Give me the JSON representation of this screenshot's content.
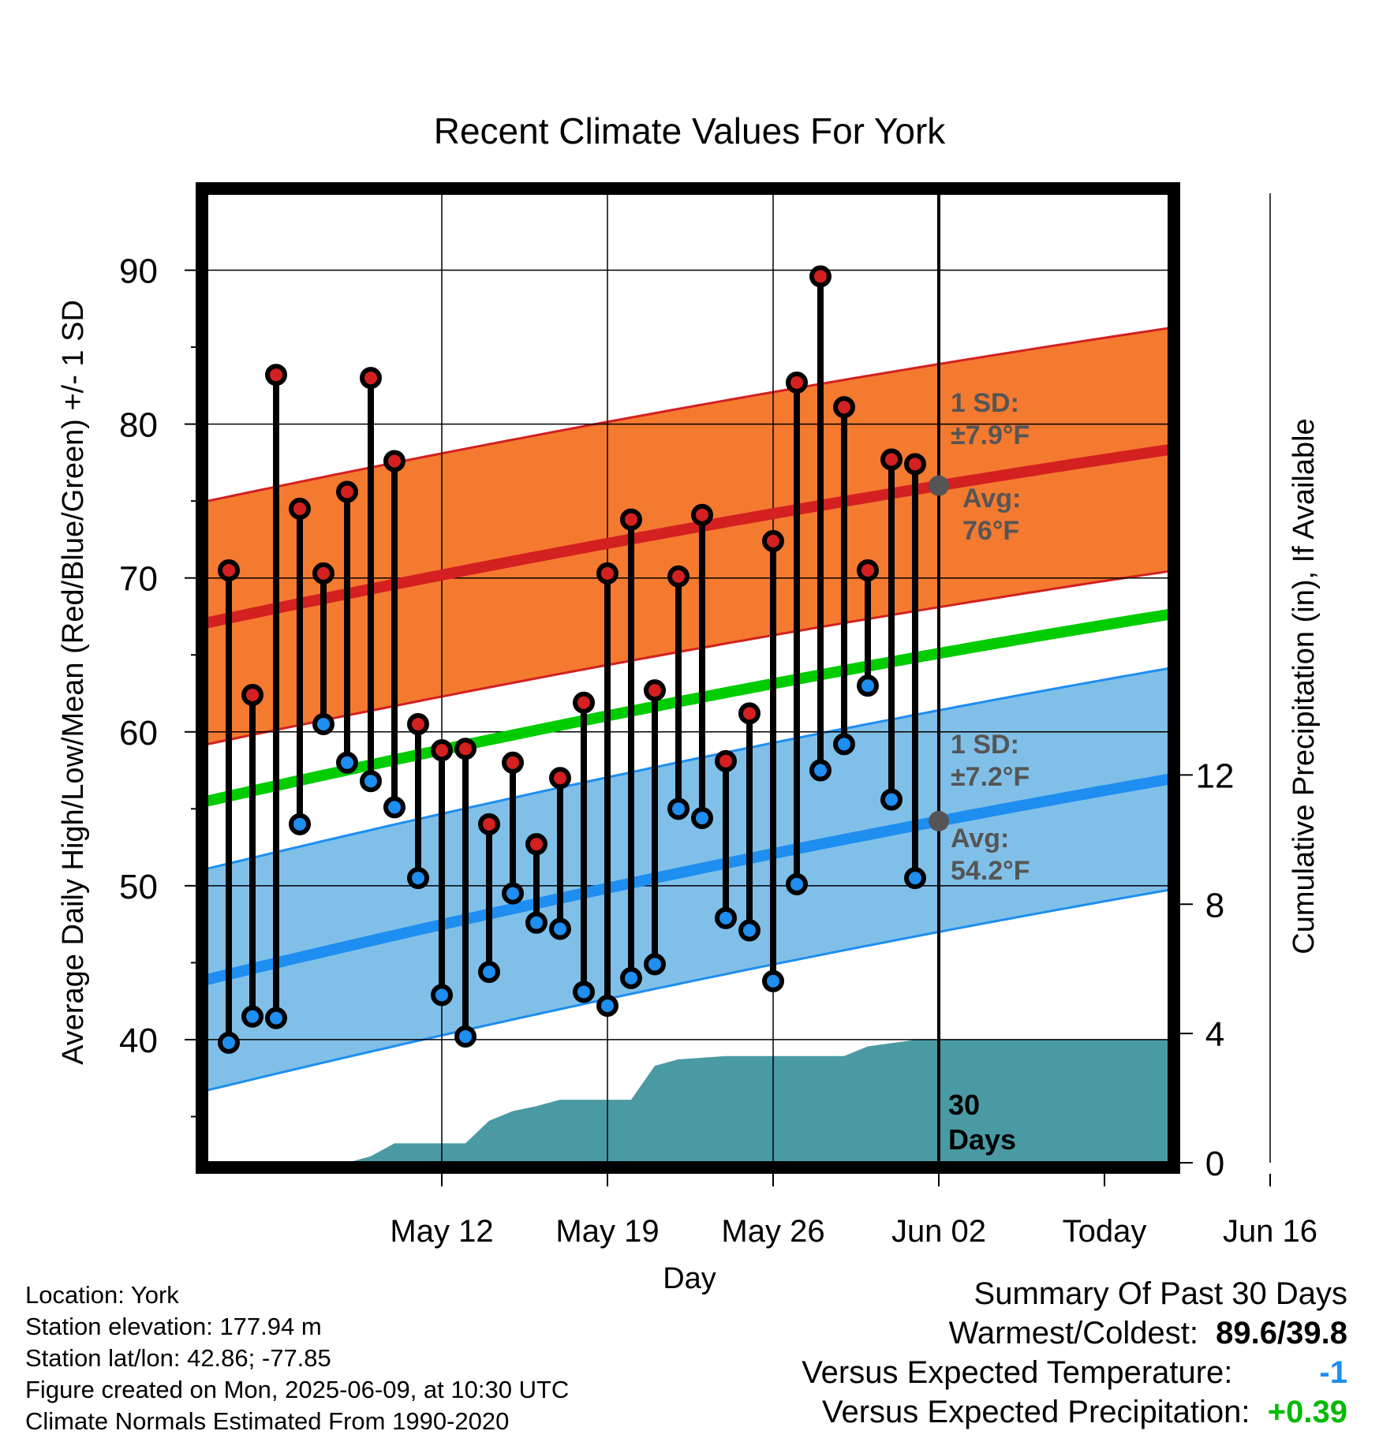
{
  "chart_data": {
    "type": "line",
    "title": "Recent Climate Values For York",
    "xlabel": "Day",
    "ylabel": "Average Daily High/Low/Mean (Red/Blue/Green) +/- 1 SD",
    "y2label": "Cumulative Precipitation (in), If Available",
    "x_ticks": [
      "May 12",
      "May 19",
      "May 26",
      "Jun 02",
      "Today",
      "Jun 16"
    ],
    "x_range_days": [
      -31.2,
      10
    ],
    "ylim": [
      32,
      95
    ],
    "y_ticks": [
      40,
      50,
      60,
      70,
      80,
      90
    ],
    "y2lim": [
      0,
      30
    ],
    "y2_ticks": [
      0,
      4,
      8,
      12
    ],
    "grid": true,
    "today_label": "30 Days",
    "highs": [
      70.5,
      62.4,
      83.2,
      74.5,
      70.3,
      75.6,
      83.0,
      77.6,
      60.5,
      58.8,
      58.9,
      54.0,
      58.0,
      52.7,
      57.0,
      61.9,
      70.3,
      73.8,
      62.7,
      70.1,
      74.1,
      58.1,
      61.2,
      72.4,
      82.7,
      89.6,
      81.1,
      70.5,
      77.7,
      77.4
    ],
    "lows": [
      39.8,
      41.5,
      41.4,
      54.0,
      60.5,
      58.0,
      56.8,
      55.1,
      50.5,
      42.9,
      40.2,
      44.4,
      49.5,
      47.6,
      47.2,
      43.1,
      42.2,
      44.0,
      44.9,
      55.0,
      54.4,
      47.9,
      47.1,
      43.8,
      50.1,
      57.5,
      59.2,
      63.0,
      55.6,
      50.5
    ],
    "normal_high": {
      "start": 67.0,
      "today": 76.0,
      "end": 78.4
    },
    "normal_low": {
      "start": 43.8,
      "today": 54.2,
      "end": 57.0
    },
    "normal_mean": {
      "start": 55.4,
      "today": 65.1,
      "end": 67.7
    },
    "sd_high": 7.9,
    "sd_low": 7.2,
    "precip_cumulative": [
      [
        -31.2,
        0
      ],
      [
        -25,
        0
      ],
      [
        -24,
        0.2
      ],
      [
        -23,
        0.6
      ],
      [
        -20,
        0.6
      ],
      [
        -19,
        1.3
      ],
      [
        -18,
        1.6
      ],
      [
        -17,
        1.75
      ],
      [
        -16,
        1.95
      ],
      [
        -14,
        1.95
      ],
      [
        -13,
        1.95
      ],
      [
        -12,
        3.0
      ],
      [
        -11,
        3.2
      ],
      [
        -9,
        3.3
      ],
      [
        -4,
        3.3
      ],
      [
        -3,
        3.6
      ],
      [
        -2,
        3.7
      ],
      [
        -1,
        3.8
      ],
      [
        0,
        3.8
      ],
      [
        10,
        3.8
      ]
    ],
    "annotations": {
      "high_sd_label": "1 SD:",
      "high_sd_value": "±7.9°F",
      "high_avg_label": "Avg:",
      "high_avg_value": "76°F",
      "low_sd_label": "1 SD:",
      "low_sd_value": "±7.2°F",
      "low_avg_label": "Avg:",
      "low_avg_value": "54.2°F"
    },
    "colors": {
      "high_band": "#f47a30",
      "high_line": "#d42020",
      "low_band": "#80c0e8",
      "low_line": "#1e8ef0",
      "mean_line": "#00cc00",
      "precip": "#4a9aa4",
      "high_dot": "#d42020",
      "low_dot": "#1e8ef0",
      "annotation": "#555555"
    }
  },
  "meta": {
    "location": "Location: York",
    "elevation": "Station elevation: 177.94 m",
    "latlon": "Station lat/lon: 42.86; -77.85",
    "created": "Figure created on Mon, 2025-06-09, at 10:30 UTC",
    "normals": "Climate Normals Estimated From 1990-2020"
  },
  "summary": {
    "title": "Summary Of Past 30 Days",
    "warm_cold_label": "Warmest/Coldest:",
    "warm_cold_value": "89.6/39.8",
    "temp_label": "Versus Expected Temperature:",
    "temp_value": "-1",
    "temp_color": "#1e8ef0",
    "precip_label": "Versus Expected Precipitation:",
    "precip_value": "+0.39",
    "precip_color": "#00bb00"
  }
}
